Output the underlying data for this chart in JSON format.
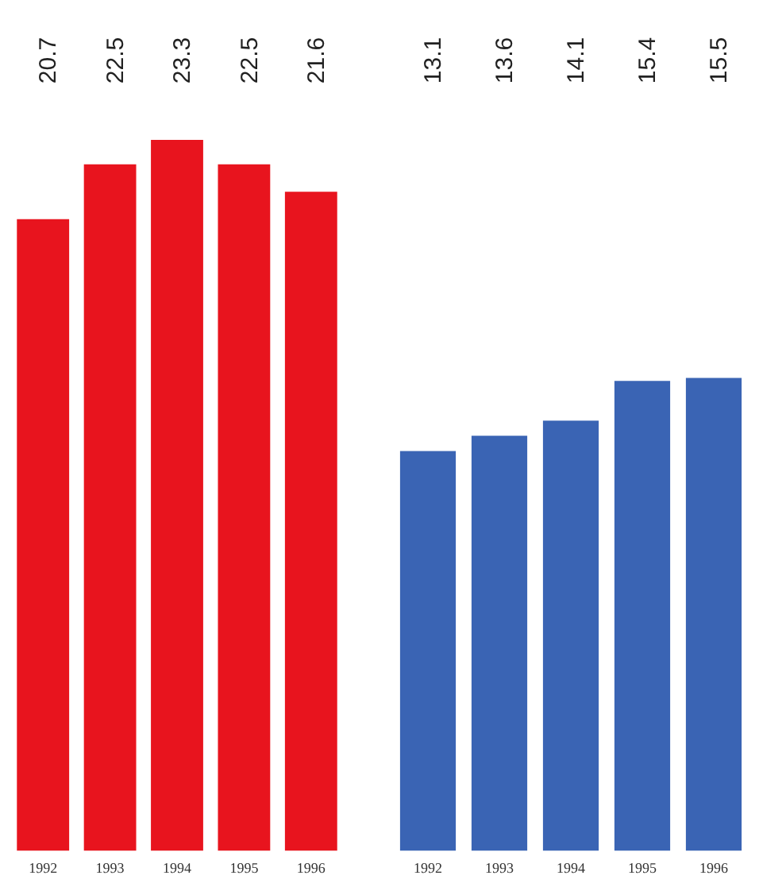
{
  "chart_data": [
    {
      "type": "bar",
      "categories": [
        "1992",
        "1993",
        "1994",
        "1995",
        "1996"
      ],
      "values": [
        20.7,
        22.5,
        23.3,
        22.5,
        21.6
      ],
      "color": "#e8141e",
      "data_labels": true,
      "grid": false,
      "legend": false
    },
    {
      "type": "bar",
      "categories": [
        "1992",
        "1993",
        "1994",
        "1995",
        "1996"
      ],
      "values": [
        13.1,
        13.6,
        14.1,
        15.4,
        15.5
      ],
      "color": "#3a64b4",
      "data_labels": true,
      "grid": false,
      "legend": false
    }
  ]
}
